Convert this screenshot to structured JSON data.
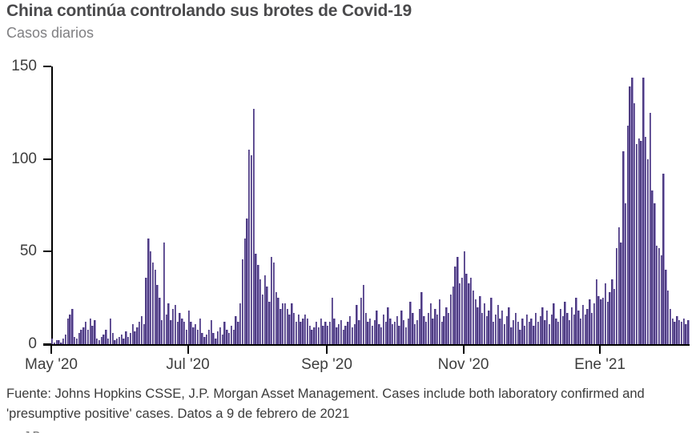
{
  "header": {
    "title": "China continúa controlando sus brotes de Covid-19",
    "subtitle": "Casos diarios"
  },
  "footer": {
    "source": "Fuente: Johns Hopkins CSSE, J.P. Morgan Asset Management. Cases include both laboratory confirmed and 'presumptive positive' cases. Datos a 9 de febrero de 2021",
    "cutoff_fragment": "J.P."
  },
  "chart_data": {
    "type": "bar",
    "title": "China continúa controlando sus brotes de Covid-19",
    "subtitle": "Casos diarios",
    "xlabel": "",
    "ylabel": "Casos diarios",
    "ylim": [
      0,
      150
    ],
    "yticks": [
      0,
      50,
      100,
      150
    ],
    "xticks": [
      "May '20",
      "Jul '20",
      "Sep '20",
      "Nov '20",
      "Ene '21"
    ],
    "xtick_day_index": [
      0,
      61,
      123,
      184,
      245
    ],
    "n_days": 285,
    "date_range_note": "daily bars from May 2020 through 9 febrero 2021",
    "bar_color_dark": "#4e3c82",
    "bar_color_light": "#a294cd",
    "axis_color": "#000000",
    "grid": false,
    "legend": "none",
    "values": [
      3,
      1,
      2,
      2,
      1,
      3,
      5,
      14,
      16,
      19,
      4,
      3,
      6,
      8,
      9,
      12,
      8,
      14,
      10,
      13,
      3,
      2,
      4,
      5,
      8,
      3,
      14,
      6,
      2,
      3,
      4,
      5,
      3,
      7,
      4,
      6,
      11,
      7,
      9,
      12,
      15,
      11,
      36,
      57,
      50,
      44,
      40,
      32,
      25,
      13,
      55,
      16,
      22,
      13,
      19,
      21,
      12,
      17,
      14,
      12,
      8,
      18,
      12,
      9,
      11,
      8,
      14,
      6,
      4,
      5,
      8,
      13,
      6,
      3,
      7,
      9,
      5,
      12,
      8,
      6,
      10,
      8,
      15,
      12,
      22,
      46,
      57,
      68,
      105,
      102,
      127,
      49,
      43,
      35,
      27,
      37,
      31,
      23,
      47,
      44,
      28,
      25,
      19,
      22,
      22,
      19,
      16,
      22,
      17,
      12,
      16,
      12,
      14,
      16,
      14,
      10,
      8,
      9,
      12,
      9,
      14,
      10,
      12,
      10,
      12,
      25,
      14,
      9,
      11,
      13,
      8,
      10,
      12,
      15,
      9,
      11,
      21,
      13,
      25,
      32,
      17,
      12,
      14,
      10,
      13,
      18,
      11,
      9,
      16,
      12,
      20,
      14,
      11,
      12,
      15,
      10,
      18,
      13,
      9,
      14,
      23,
      17,
      11,
      13,
      19,
      28,
      15,
      12,
      17,
      22,
      14,
      19,
      16,
      24,
      12,
      15,
      20,
      17,
      27,
      31,
      42,
      47,
      33,
      36,
      50,
      38,
      33,
      36,
      29,
      24,
      20,
      26,
      17,
      22,
      15,
      18,
      25,
      12,
      16,
      21,
      14,
      18,
      11,
      15,
      20,
      9,
      13,
      17,
      12,
      8,
      14,
      10,
      16,
      12,
      14,
      10,
      17,
      12,
      15,
      20,
      13,
      18,
      11,
      16,
      22,
      14,
      12,
      19,
      15,
      23,
      17,
      13,
      20,
      16,
      25,
      18,
      14,
      21,
      16,
      19,
      24,
      17,
      22,
      35,
      26,
      24,
      25,
      33,
      23,
      28,
      35,
      30,
      52,
      63,
      55,
      104,
      76,
      118,
      139,
      144,
      130,
      108,
      111,
      110,
      144,
      112,
      100,
      125,
      83,
      76,
      53,
      52,
      48,
      92,
      40,
      29,
      19,
      14,
      12,
      15,
      13,
      12,
      14,
      11,
      13
    ]
  }
}
